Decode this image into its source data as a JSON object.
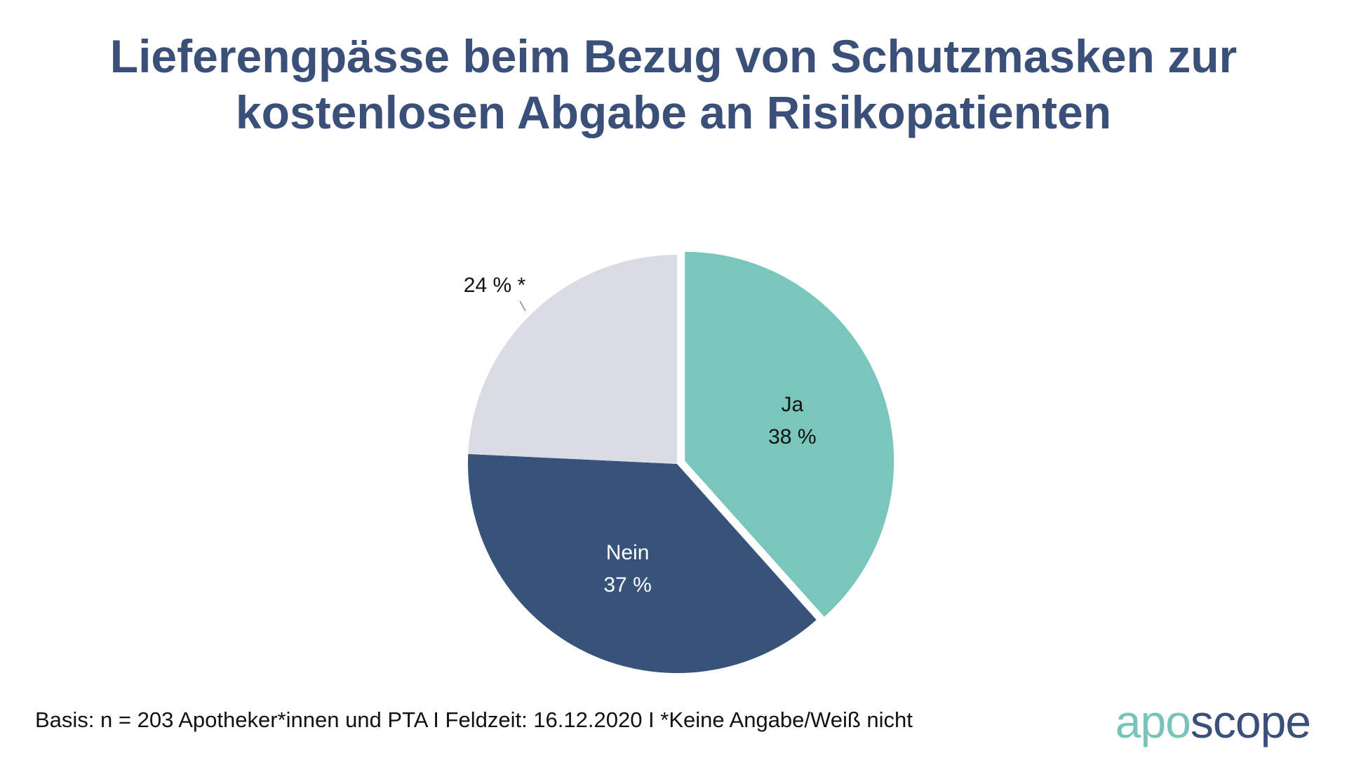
{
  "title_line1": "Lieferengpässe beim Bezug von Schutzmasken zur",
  "title_line2": "kostenlosen Abgabe an Risikopatienten",
  "footer": "Basis: n = 203 Apotheker*innen und PTA I Feldzeit: 16.12.2020 I *Keine Angabe/Weiß nicht",
  "logo": {
    "part1": "apo",
    "part2": "scope"
  },
  "chart_data": {
    "type": "pie",
    "title": "Lieferengpässe beim Bezug von Schutzmasken zur kostenlosen Abgabe an Risikopatienten",
    "slices": [
      {
        "label": "Ja",
        "value": 38,
        "value_label": "38 %",
        "color": "#78c6bc",
        "exploded": true,
        "text_color": "#111111"
      },
      {
        "label": "Nein",
        "value": 37,
        "value_label": "37 %",
        "color": "#37537a",
        "exploded": false,
        "text_color": "#ffffff"
      },
      {
        "label": "",
        "value": 24,
        "value_label": "24 % *",
        "color": "#d9dce4",
        "exploded": false,
        "text_color": "#111111"
      }
    ]
  }
}
